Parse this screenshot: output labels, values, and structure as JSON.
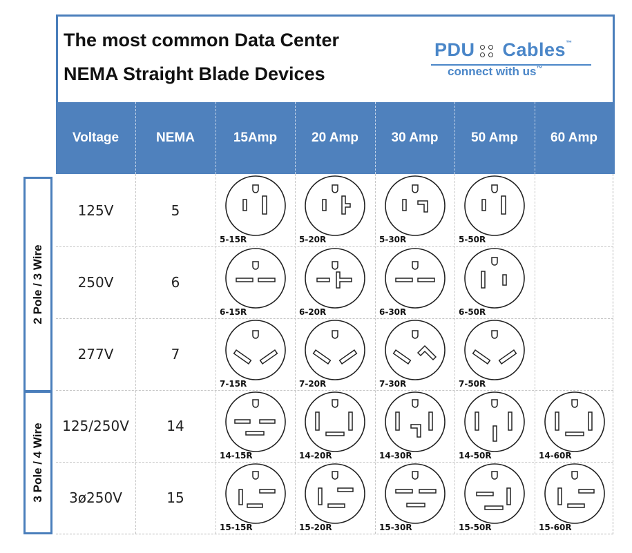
{
  "title": {
    "line1": "The most common Data Center",
    "line2": "NEMA Straight Blade Devices"
  },
  "logo": {
    "brand_left": "PDU",
    "brand_right": "Cables",
    "tagline": "connect with us",
    "trademark": "™",
    "color": "#4a86c8"
  },
  "table": {
    "headers": [
      "Voltage",
      "NEMA",
      "15Amp",
      "20 Amp",
      "30 Amp",
      "50 Amp",
      "60 Amp"
    ],
    "header_color": "#4f81bd",
    "groups": [
      "2 Pole / 3 Wire",
      "3 Pole / 4 Wire"
    ],
    "rows": [
      {
        "voltage": "125V",
        "nema": "5",
        "outlets": [
          "5-15R",
          "5-20R",
          "5-30R",
          "5-50R"
        ]
      },
      {
        "voltage": "250V",
        "nema": "6",
        "outlets": [
          "6-15R",
          "6-20R",
          "6-30R",
          "6-50R"
        ]
      },
      {
        "voltage": "277V",
        "nema": "7",
        "outlets": [
          "7-15R",
          "7-20R",
          "7-30R",
          "7-50R"
        ]
      },
      {
        "voltage": "125/250V",
        "nema": "14",
        "outlets": [
          "14-15R",
          "14-20R",
          "14-30R",
          "14-50R",
          "14-60R"
        ]
      },
      {
        "voltage": "3ø250V",
        "nema": "15",
        "outlets": [
          "15-15R",
          "15-20R",
          "15-30R",
          "15-50R",
          "15-60R"
        ]
      }
    ]
  }
}
